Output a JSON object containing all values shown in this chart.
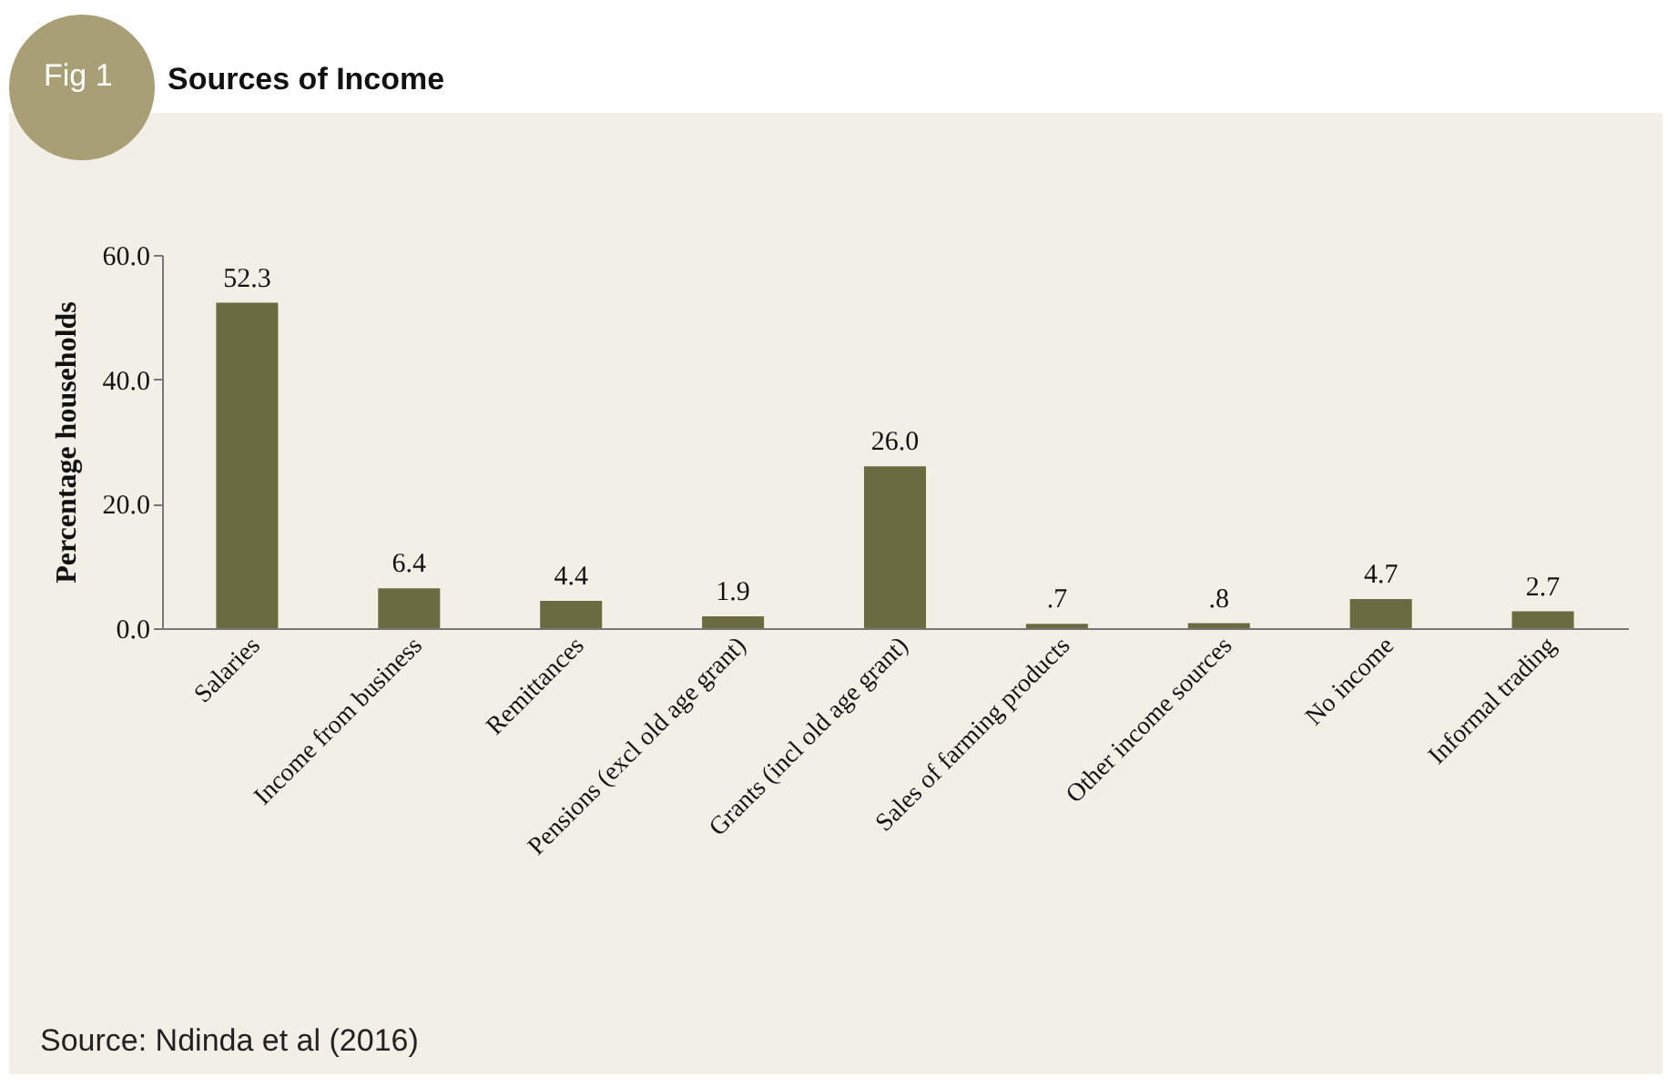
{
  "chart_data": {
    "type": "bar",
    "title": "Sources of Income",
    "ylabel": "Percentage households",
    "categories": [
      "Salaries",
      "Income from business",
      "Remittances",
      "Pensions (excl old age grant)",
      "Grants (incl old age grant)",
      "Sales of farming products",
      "Other income sources",
      "No income",
      "Informal trading"
    ],
    "values": [
      52.3,
      6.4,
      4.4,
      1.9,
      26.0,
      0.7,
      0.8,
      4.7,
      2.7
    ],
    "value_labels": [
      "52.3",
      "6.4",
      "4.4",
      "1.9",
      "26.0",
      ".7",
      ".8",
      "4.7",
      "2.7"
    ],
    "color": "#6a6b40",
    "ylim": [
      0,
      60
    ],
    "yticks": [
      {
        "value": 0,
        "label": "0.0"
      },
      {
        "value": 20,
        "label": "20.0"
      },
      {
        "value": 40,
        "label": "40.0"
      },
      {
        "value": 60,
        "label": "60.0"
      }
    ],
    "grid": false,
    "annotations": [
      "Fig 1",
      "Source: Ndinda et al (2016)"
    ]
  }
}
